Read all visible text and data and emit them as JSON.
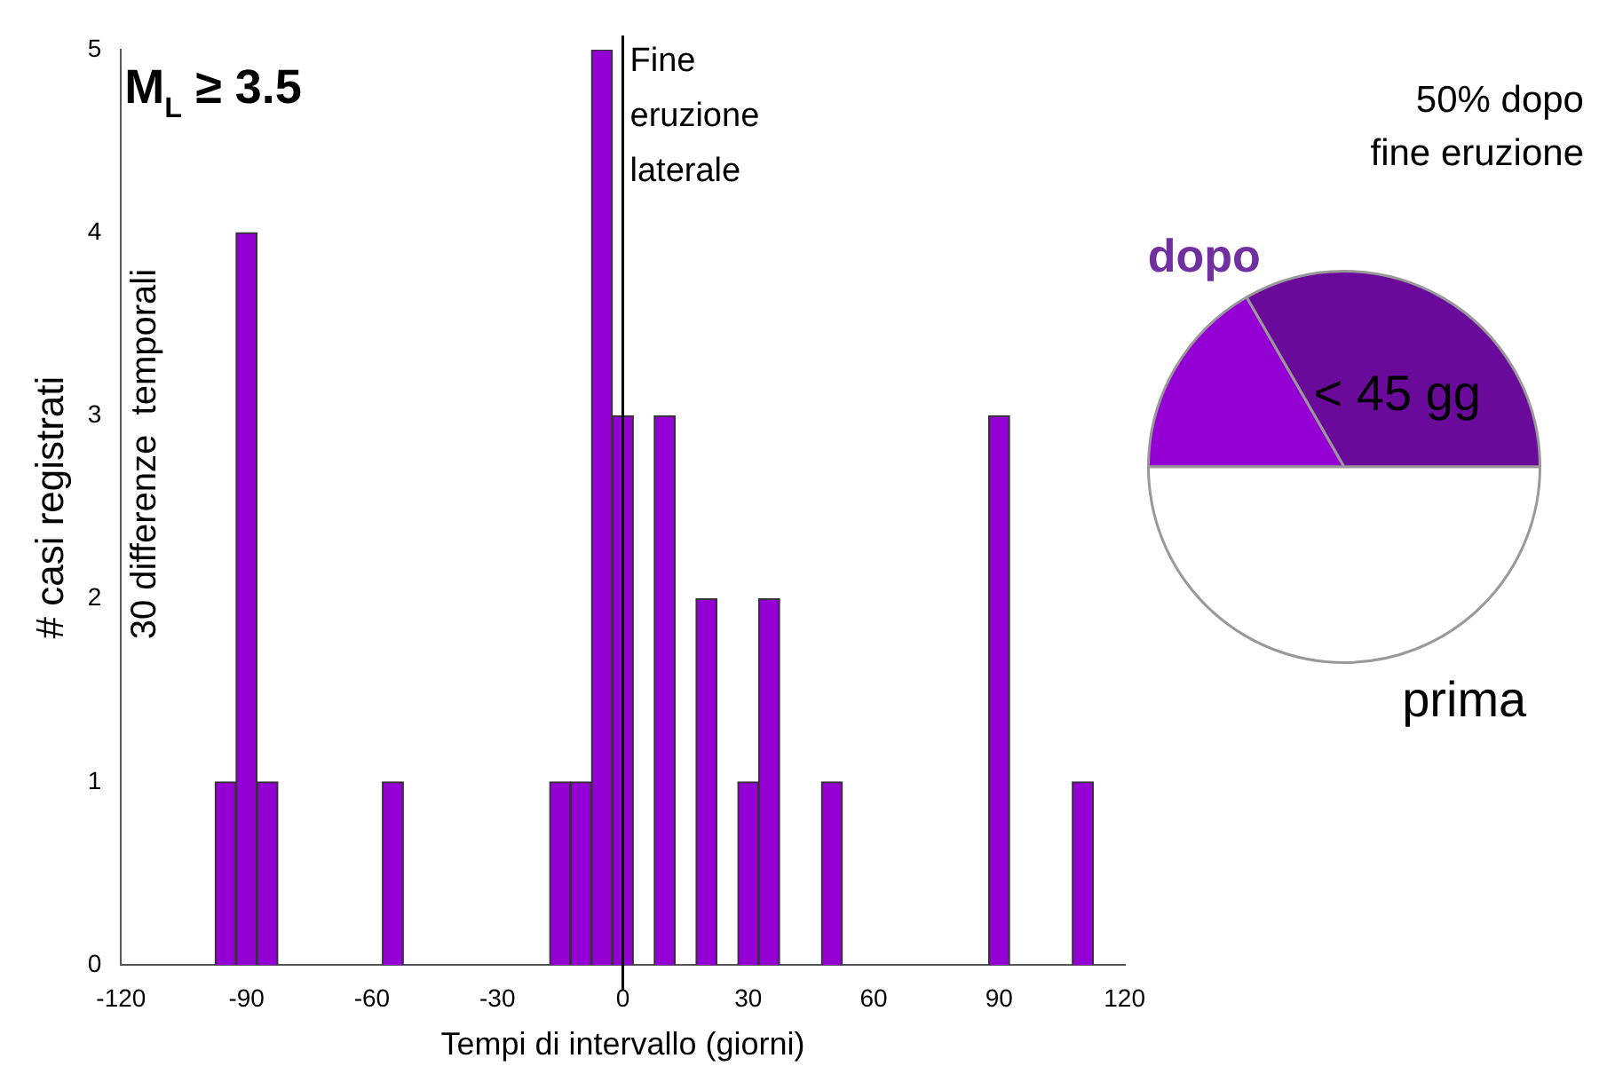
{
  "chart_data": [
    {
      "type": "histogram",
      "title": "M$_{L}$ ≥ 3.5",
      "xlabel": "Tempi di intervallo (giorni)",
      "ylabel": "# casi registrati",
      "bins": [
        -97.5,
        -92.5,
        -87.5,
        -82.5,
        -77.5,
        -72.5,
        -67.5,
        -62.5,
        -57.5,
        -52.5,
        -47.5,
        -42.5,
        -37.5,
        -32.5,
        -27.5,
        -22.5,
        -17.5,
        -12.5,
        -7.5,
        -2.5,
        2.5,
        7.5,
        12.5,
        17.5,
        22.5,
        27.5,
        32.5,
        37.5,
        42.5,
        47.5,
        52.5,
        57.5,
        62.5,
        67.5,
        72.5,
        77.5,
        82.5,
        87.5,
        92.5,
        97.5,
        102.5,
        107.5,
        112.5
      ],
      "series": [
        {
          "color": "#9400d3",
          "values": [
            1,
            4,
            1,
            0,
            0,
            0,
            0,
            0,
            1,
            0,
            0,
            0,
            0,
            0,
            0,
            0,
            1,
            1,
            5,
            3,
            0,
            3,
            0,
            2,
            0,
            1,
            2,
            0,
            0,
            1,
            0,
            0,
            0,
            0,
            0,
            0,
            0,
            3,
            0,
            0,
            0,
            1
          ]
        }
      ],
      "xlim": [
        -120,
        120
      ],
      "xticks": [
        -120,
        -90,
        -60,
        -30,
        0,
        30,
        60,
        90,
        120
      ],
      "ylim": [
        0,
        5
      ],
      "yticks": [
        0,
        1,
        2,
        3,
        4,
        5
      ],
      "grid": false,
      "ref_lines": [
        {
          "axis": "x",
          "value": 0,
          "label": "Fine\neruzione\nlaterale",
          "color": "#000000"
        }
      ],
      "annotations": [
        "30 differenze  temporali"
      ]
    },
    {
      "type": "pie",
      "title": "50% dopo\nfine eruzione",
      "categories": [
        "dopo",
        "< 45 gg",
        "prima"
      ],
      "values": [
        16.7,
        33.3,
        50
      ],
      "colors": [
        "#9400d3",
        "#6a0a9a",
        "#ffffff"
      ]
    }
  ]
}
